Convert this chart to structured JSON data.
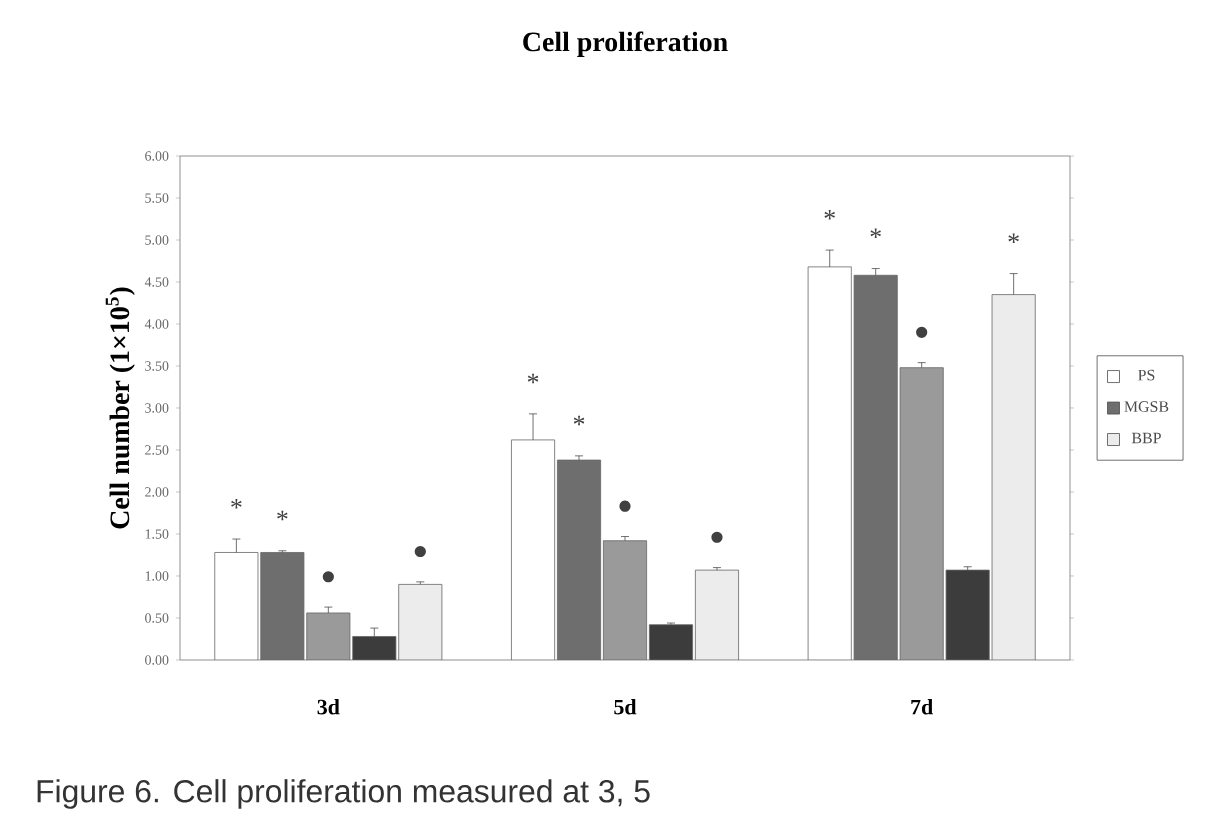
{
  "chart_data": {
    "type": "bar",
    "title": "Cell proliferation",
    "ylabel": "Cell number (1×10$^{5}$)",
    "categories": [
      "3d",
      "5d",
      "7d"
    ],
    "series": [
      {
        "name": "PS",
        "color": "#ffffff",
        "values": [
          1.28,
          2.62,
          4.68
        ],
        "errors": [
          0.16,
          0.31,
          0.2
        ],
        "value_labels": [
          "*",
          "*",
          "*"
        ]
      },
      {
        "name": "MGSB",
        "color": "#6e6e6e",
        "values": [
          1.28,
          2.38,
          4.58
        ],
        "errors": [
          0.02,
          0.05,
          0.08
        ],
        "value_labels": [
          "*",
          "*",
          "*"
        ]
      },
      {
        "color": "#9a9a9a",
        "values": [
          0.56,
          1.42,
          3.48
        ],
        "errors": [
          0.07,
          0.05,
          0.06
        ],
        "value_labels": [
          "●",
          "●",
          "●"
        ]
      },
      {
        "color": "#3c3c3c",
        "values": [
          0.28,
          0.42,
          1.07
        ],
        "errors": [
          0.1,
          0.02,
          0.04
        ]
      },
      {
        "name": "BBP",
        "color": "#ececec",
        "values": [
          0.9,
          1.07,
          4.35
        ],
        "errors": [
          0.03,
          0.03,
          0.25
        ],
        "value_labels": [
          "●",
          "●",
          "*"
        ]
      }
    ],
    "ylim": [
      0,
      6
    ],
    "yticks": [
      {
        "value": 0,
        "label": "0.00"
      },
      {
        "value": 0.5,
        "label": "0.50"
      },
      {
        "value": 1,
        "label": "1.00"
      },
      {
        "value": 1.5,
        "label": "1.50"
      },
      {
        "value": 2,
        "label": "2.00"
      },
      {
        "value": 2.5,
        "label": "2.50"
      },
      {
        "value": 3,
        "label": "3.00"
      },
      {
        "value": 3.5,
        "label": "3.50"
      },
      {
        "value": 4,
        "label": "4.00"
      },
      {
        "value": 4.5,
        "label": "4.50"
      },
      {
        "value": 5,
        "label": "5.00"
      },
      {
        "value": 5.5,
        "label": "5.50"
      },
      {
        "value": 6,
        "label": "6.00"
      }
    ],
    "legend": "right",
    "grid": false,
    "annotations": [
      "Figure 6. Cell proliferation measured at 3, 5"
    ]
  }
}
